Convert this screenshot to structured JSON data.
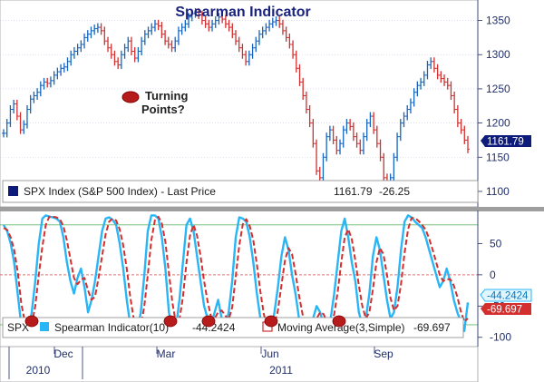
{
  "chart_data": [
    {
      "type": "line",
      "title": "Spearman Indicator",
      "series": [
        {
          "name": "SPX Index (S&P 500 Index) - Last Price",
          "last_value": 1161.79,
          "change": -26.25,
          "values": [
            1185,
            1200,
            1220,
            1228,
            1210,
            1190,
            1198,
            1220,
            1235,
            1240,
            1245,
            1255,
            1260,
            1258,
            1262,
            1270,
            1275,
            1280,
            1282,
            1290,
            1300,
            1305,
            1310,
            1315,
            1325,
            1330,
            1335,
            1338,
            1340,
            1335,
            1320,
            1310,
            1300,
            1290,
            1285,
            1300,
            1310,
            1320,
            1305,
            1295,
            1305,
            1320,
            1330,
            1335,
            1340,
            1345,
            1342,
            1330,
            1320,
            1315,
            1310,
            1320,
            1335,
            1340,
            1345,
            1355,
            1360,
            1362,
            1358,
            1350,
            1345,
            1340,
            1345,
            1350,
            1355,
            1352,
            1345,
            1340,
            1330,
            1320,
            1310,
            1300,
            1290,
            1300,
            1310,
            1320,
            1330,
            1335,
            1340,
            1345,
            1348,
            1350,
            1345,
            1335,
            1325,
            1315,
            1300,
            1280,
            1260,
            1240,
            1220,
            1200,
            1170,
            1130,
            1120,
            1150,
            1180,
            1190,
            1175,
            1160,
            1170,
            1190,
            1200,
            1195,
            1180,
            1170,
            1160,
            1180,
            1200,
            1210,
            1190,
            1170,
            1150,
            1120,
            1100,
            1120,
            1150,
            1180,
            1200,
            1210,
            1220,
            1230,
            1245,
            1255,
            1260,
            1270,
            1285,
            1290,
            1280,
            1270,
            1265,
            1260,
            1255,
            1240,
            1220,
            1200,
            1190,
            1175,
            1161.79
          ]
        }
      ],
      "y_ticks": [
        "1350",
        "1300",
        "1250",
        "1200",
        "1150",
        "1100"
      ],
      "ylim": [
        1080,
        1372
      ],
      "annotation": [
        "Turning",
        "Points?"
      ]
    },
    {
      "type": "line",
      "series": [
        {
          "name": "Spearman Indicator(10)",
          "last_value": -44.2424,
          "last_label": "-44.2424",
          "color": "#29b6f6",
          "values": [
            80,
            70,
            50,
            20,
            -30,
            -80,
            -95,
            -90,
            -60,
            -10,
            50,
            90,
            95,
            93,
            92,
            90,
            85,
            60,
            20,
            -10,
            -30,
            -5,
            10,
            -20,
            -60,
            -40,
            -10,
            30,
            70,
            90,
            92,
            88,
            80,
            50,
            10,
            -40,
            -80,
            -95,
            -90,
            -60,
            0,
            70,
            95,
            95,
            90,
            60,
            10,
            -60,
            -90,
            -85,
            -40,
            20,
            80,
            90,
            70,
            30,
            -10,
            -50,
            -70,
            -80,
            -60,
            -40,
            -70,
            -85,
            -60,
            -10,
            60,
            92,
            90,
            85,
            60,
            20,
            -30,
            -70,
            -90,
            -95,
            -90,
            -60,
            -20,
            30,
            60,
            40,
            0,
            -30,
            -70,
            -90,
            -95,
            -90,
            -70,
            -50,
            -60,
            -80,
            -90,
            -70,
            -30,
            20,
            70,
            90,
            60,
            20,
            -10,
            -60,
            -80,
            -70,
            -30,
            30,
            60,
            40,
            0,
            -40,
            -70,
            -60,
            -20,
            40,
            85,
            95,
            92,
            85,
            80,
            75,
            60,
            40,
            20,
            0,
            -20,
            -10,
            10,
            -10,
            -40,
            -60,
            -75,
            -90,
            -44.2424
          ]
        },
        {
          "name": "Moving Average(3,Simple)",
          "last_value": -69.697,
          "last_label": "-69.697",
          "color": "#d32f2f",
          "values": [
            75,
            72,
            60,
            40,
            5,
            -45,
            -75,
            -90,
            -80,
            -50,
            0,
            45,
            80,
            93,
            93,
            92,
            89,
            78,
            55,
            25,
            -5,
            -15,
            -8,
            -5,
            -25,
            -40,
            -35,
            -5,
            30,
            65,
            85,
            90,
            87,
            73,
            47,
            10,
            -35,
            -70,
            -88,
            -82,
            -50,
            0,
            55,
            87,
            93,
            82,
            53,
            3,
            -45,
            -78,
            -72,
            -35,
            20,
            63,
            80,
            63,
            30,
            -10,
            -43,
            -67,
            -70,
            -60,
            -57,
            -65,
            -72,
            -52,
            -3,
            47,
            81,
            89,
            78,
            55,
            17,
            -27,
            -63,
            -85,
            -92,
            -82,
            -57,
            -17,
            23,
            43,
            33,
            3,
            -33,
            -63,
            -85,
            -92,
            -85,
            -70,
            -60,
            -63,
            -77,
            -80,
            -63,
            -27,
            20,
            60,
            73,
            57,
            23,
            -17,
            -50,
            -70,
            -60,
            -23,
            20,
            43,
            33,
            0,
            -37,
            -57,
            -50,
            -15,
            35,
            73,
            91,
            91,
            86,
            80,
            72,
            58,
            40,
            20,
            0,
            -10,
            -7,
            -7,
            -17,
            -35,
            -58,
            -75,
            -69.697
          ]
        }
      ],
      "y_ticks": [
        "50",
        "0",
        "-50",
        "-100"
      ],
      "ylim": [
        -112,
        100
      ],
      "reference_lines": [
        80,
        0,
        -80
      ],
      "legend_prefix": "SPX"
    }
  ],
  "x_axis": {
    "month_labels": [
      "Dec",
      "Mar",
      "Jun",
      "Sep"
    ],
    "year_labels": [
      "2010",
      "2011"
    ]
  },
  "colors": {
    "up_bar": "#1565c0",
    "down_bar": "#d32f2f",
    "axis_text": "#1f2f6b",
    "marker": "#b71c1c"
  }
}
